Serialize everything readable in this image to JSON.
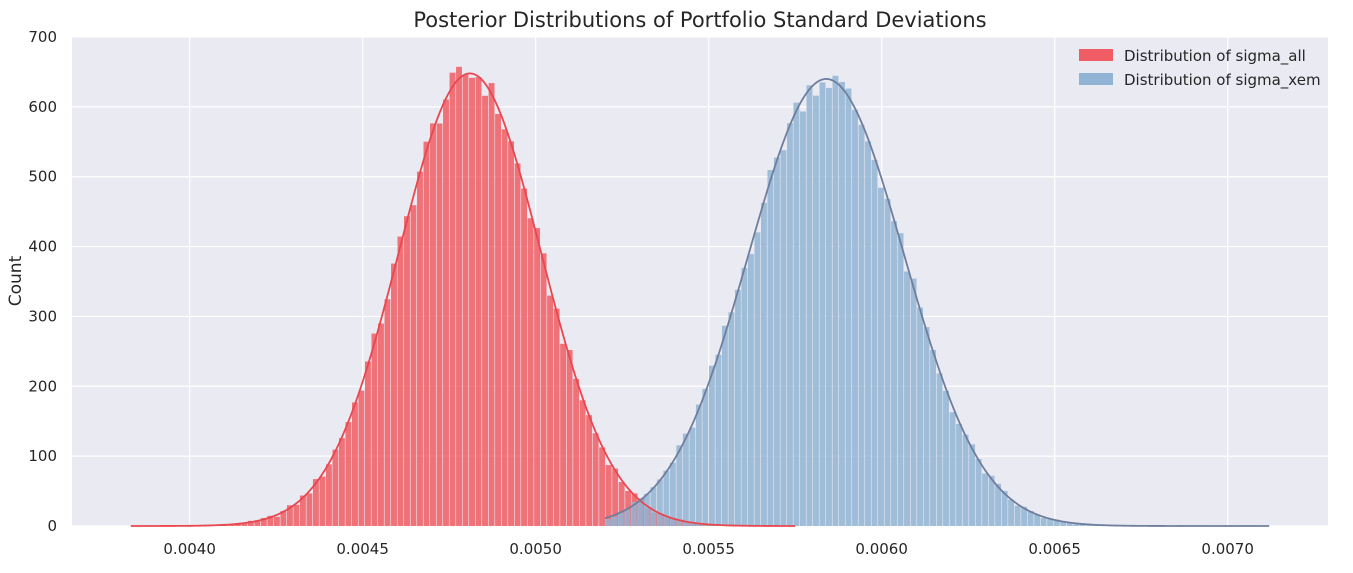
{
  "chart_data": {
    "type": "bar",
    "title": "Posterior Distributions of Portfolio Standard Deviations",
    "xlabel": "",
    "ylabel": "Count",
    "xlim": [
      0.00366,
      0.00729
    ],
    "ylim": [
      0,
      700
    ],
    "x_ticks": [
      0.004,
      0.0045,
      0.005,
      0.0055,
      0.006,
      0.0065,
      0.007
    ],
    "x_tick_labels": [
      "0.0040",
      "0.0045",
      "0.0050",
      "0.0055",
      "0.0060",
      "0.0065",
      "0.0070"
    ],
    "y_ticks": [
      0,
      100,
      200,
      300,
      400,
      500,
      600,
      700
    ],
    "y_tick_labels": [
      "0",
      "100",
      "200",
      "300",
      "400",
      "500",
      "600",
      "700"
    ],
    "grid": true,
    "legend_position": "top-right",
    "background": "#EAEAF2",
    "series": [
      {
        "name": "Distribution of sigma_all",
        "color": "#F05D64",
        "kde_color": "#E8474F",
        "mean": 0.00481,
        "sd": 0.000205,
        "peak": 648,
        "x_start": 0.00383,
        "x_end": 0.00575,
        "bin_width": 1.88e-05
      },
      {
        "name": "Distribution of sigma_xem",
        "color": "#92B4D4",
        "kde_color": "#6F7E9C",
        "mean": 0.00584,
        "sd": 0.000225,
        "peak": 640,
        "x_start": 0.0052,
        "x_end": 0.00712,
        "bin_width": 1.88e-05
      }
    ]
  }
}
